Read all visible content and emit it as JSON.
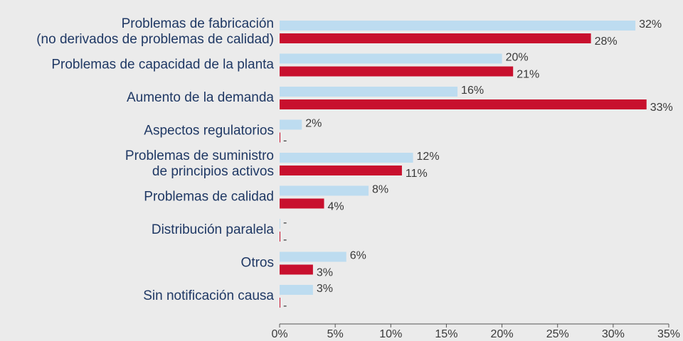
{
  "chart_data": {
    "type": "bar",
    "orientation": "horizontal",
    "categories": [
      [
        "Problemas de fabricación",
        "(no derivados de problemas de calidad)"
      ],
      [
        "Problemas de capacidad de la planta"
      ],
      [
        "Aumento de la demanda"
      ],
      [
        "Aspectos regulatorios"
      ],
      [
        "Problemas de suministro",
        "de principios activos"
      ],
      [
        "Problemas de calidad"
      ],
      [
        "Distribución paralela"
      ],
      [
        "Otros"
      ],
      [
        "Sin notificación causa"
      ]
    ],
    "series": [
      {
        "color": "#bddcf0",
        "values": [
          32,
          20,
          16,
          2,
          12,
          8,
          0,
          6,
          3
        ],
        "value_labels": [
          "32%",
          "20%",
          "16%",
          "2%",
          "12%",
          "8%",
          "-",
          "6%",
          "3%"
        ]
      },
      {
        "color": "#c8102e",
        "values": [
          28,
          21,
          33,
          0,
          11,
          4,
          0,
          3,
          0
        ],
        "value_labels": [
          "28%",
          "21%",
          "33%",
          "-",
          "11%",
          "4%",
          "-",
          "3%",
          "-"
        ]
      }
    ],
    "xlim": [
      0,
      35
    ],
    "xticks": [
      {
        "value": 0,
        "label": "0%"
      },
      {
        "value": 5,
        "label": "5%"
      },
      {
        "value": 10,
        "label": "10%"
      },
      {
        "value": 15,
        "label": "15%"
      },
      {
        "value": 20,
        "label": "20%"
      },
      {
        "value": 25,
        "label": "25%"
      },
      {
        "value": 30,
        "label": "30%"
      },
      {
        "value": 35,
        "label": "35%"
      }
    ]
  }
}
